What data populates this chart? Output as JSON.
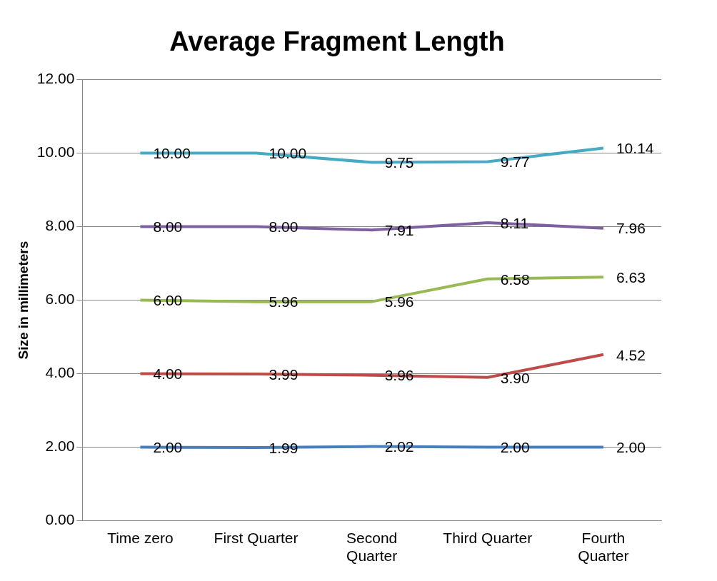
{
  "chart_data": {
    "type": "line",
    "title": "Average Fragment Length",
    "ylabel": "Size in millimeters",
    "categories": [
      "Time zero",
      "First Quarter",
      "Second Quarter",
      "Third Quarter",
      "Fourth Quarter"
    ],
    "series": [
      {
        "color": "#4a7ebb",
        "values": [
          2.0,
          1.99,
          2.02,
          2.0,
          2.0
        ],
        "value_labels": [
          "2.00",
          "1.99",
          "2.02",
          "2.00",
          "2.00"
        ]
      },
      {
        "color": "#be4b48",
        "values": [
          4.0,
          3.99,
          3.96,
          3.9,
          4.52
        ],
        "value_labels": [
          "4.00",
          "3.99",
          "3.96",
          "3.90",
          "4.52"
        ]
      },
      {
        "color": "#98b954",
        "values": [
          6.0,
          5.96,
          5.96,
          6.58,
          6.63
        ],
        "value_labels": [
          "6.00",
          "5.96",
          "5.96",
          "6.58",
          "6.63"
        ]
      },
      {
        "color": "#7d60a0",
        "values": [
          8.0,
          8.0,
          7.91,
          8.11,
          7.96
        ],
        "value_labels": [
          "8.00",
          "8.00",
          "7.91",
          "8.11",
          "7.96"
        ]
      },
      {
        "color": "#46aac5",
        "values": [
          10.0,
          10.0,
          9.75,
          9.77,
          10.14
        ],
        "value_labels": [
          "10.00",
          "10.00",
          "9.75",
          "9.77",
          "10.14"
        ]
      }
    ],
    "ylim": [
      0,
      12
    ],
    "yticks": [
      {
        "value": 0,
        "label": "0.00"
      },
      {
        "value": 2,
        "label": "2.00"
      },
      {
        "value": 4,
        "label": "4.00"
      },
      {
        "value": 6,
        "label": "6.00"
      },
      {
        "value": 8,
        "label": "8.00"
      },
      {
        "value": 10,
        "label": "10.00"
      },
      {
        "value": 12,
        "label": "12.00"
      }
    ],
    "grid": "y",
    "legend": false,
    "marker": "none",
    "line_style": "solid"
  }
}
